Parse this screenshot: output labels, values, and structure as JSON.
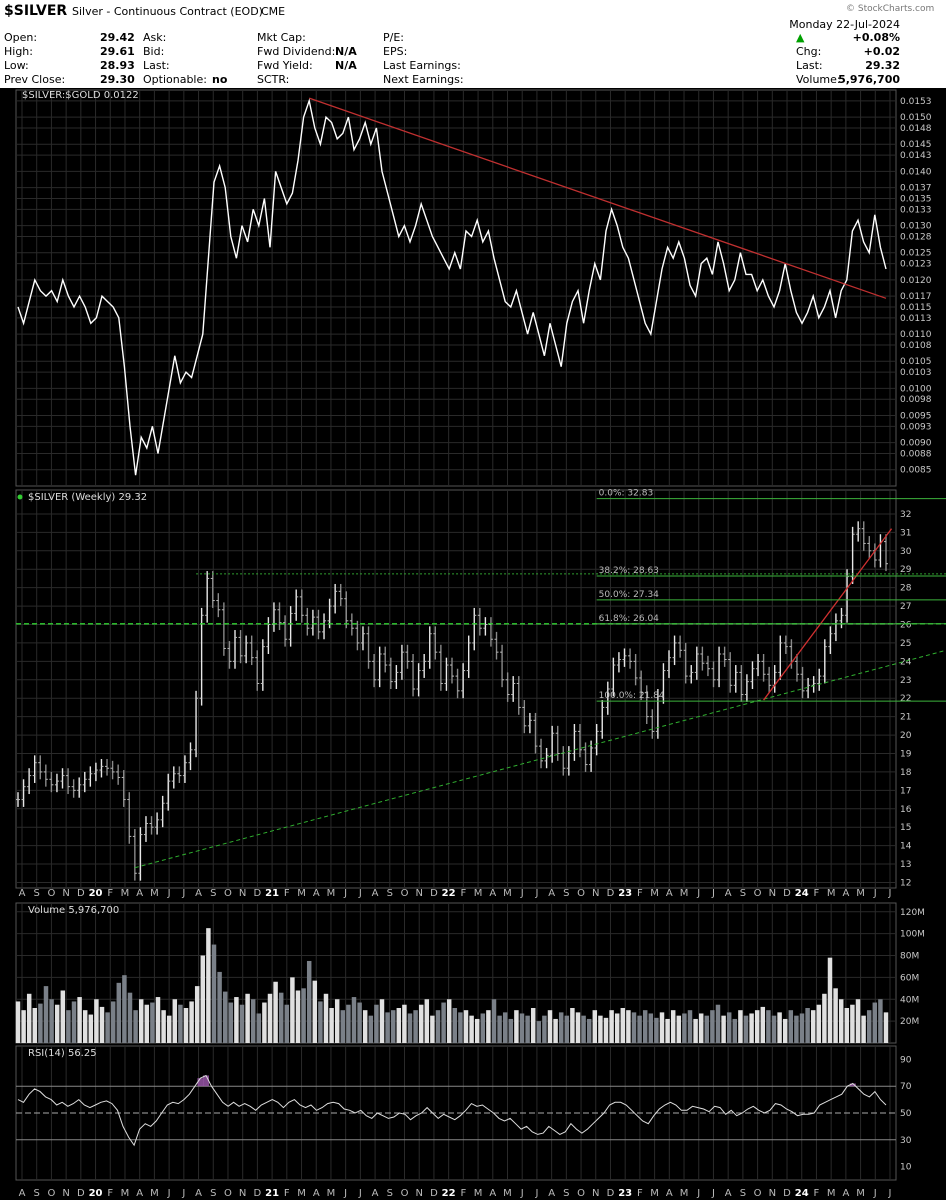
{
  "header": {
    "symbol": "$SILVER",
    "description": "Silver - Continuous Contract (EOD)",
    "exchange": "CME",
    "watermark": "© StockCharts.com",
    "date": "Monday  22-Jul-2024",
    "change_pct": "+0.08%",
    "change_arrow": "▲",
    "col1": [
      {
        "label": "Open:",
        "value": "29.42"
      },
      {
        "label": "High:",
        "value": "29.61"
      },
      {
        "label": "Low:",
        "value": "28.93"
      },
      {
        "label": "Prev Close:",
        "value": "29.30"
      }
    ],
    "col2": [
      {
        "label": "Ask:",
        "value": ""
      },
      {
        "label": "Bid:",
        "value": ""
      },
      {
        "label": "Last:",
        "value": ""
      },
      {
        "label": "Optionable:",
        "value": "no"
      }
    ],
    "col3": [
      {
        "label": "Mkt Cap:",
        "value": ""
      },
      {
        "label": "Fwd Dividend:",
        "value": "N/A"
      },
      {
        "label": "Fwd Yield:",
        "value": "N/A"
      },
      {
        "label": "SCTR:",
        "value": ""
      }
    ],
    "col4": [
      {
        "label": "P/E:",
        "value": ""
      },
      {
        "label": "EPS:",
        "value": ""
      },
      {
        "label": "Last Earnings:",
        "value": ""
      },
      {
        "label": "Next Earnings:",
        "value": ""
      }
    ],
    "chg_label": "Chg:",
    "chg_value": "+0.02",
    "last_label": "Last:",
    "last_value": "29.32",
    "volume_label": "Volume:",
    "volume_value": "5,976,700",
    "up_color": "#00a000"
  },
  "chart_data": [
    {
      "type": "line",
      "title": "$SILVER:$GOLD 0.0122",
      "x_start": "2019-08",
      "x_end": "2024-07",
      "ylim": [
        0.0082,
        0.0155
      ],
      "y_ticks": [
        "0.0153",
        "0.0150",
        "0.0148",
        "0.0145",
        "0.0143",
        "0.0140",
        "0.0137",
        "0.0135",
        "0.0133",
        "0.0130",
        "0.0128",
        "0.0125",
        "0.0123",
        "0.0120",
        "0.0117",
        "0.0115",
        "0.0113",
        "0.0110",
        "0.0108",
        "0.0105",
        "0.0103",
        "0.0100",
        "0.0098",
        "0.0095",
        "0.0093",
        "0.0090",
        "0.0088",
        "0.0085"
      ],
      "y_tick_values": [
        0.0153,
        0.015,
        0.0148,
        0.0145,
        0.0143,
        0.014,
        0.0137,
        0.0135,
        0.0133,
        0.013,
        0.0128,
        0.0125,
        0.0123,
        0.012,
        0.0117,
        0.0115,
        0.0113,
        0.011,
        0.0108,
        0.0105,
        0.0103,
        0.01,
        0.0098,
        0.0095,
        0.0093,
        0.009,
        0.0088,
        0.0085
      ],
      "series": [
        {
          "values": [
            0.0115,
            0.0112,
            0.0116,
            0.012,
            0.0118,
            0.0117,
            0.0118,
            0.0116,
            0.012,
            0.0117,
            0.0115,
            0.0117,
            0.0115,
            0.0112,
            0.0113,
            0.0117,
            0.0116,
            0.0115,
            0.0113,
            0.0104,
            0.0093,
            0.0084,
            0.0091,
            0.0089,
            0.0093,
            0.0088,
            0.0094,
            0.01,
            0.0106,
            0.0101,
            0.0103,
            0.0102,
            0.0106,
            0.011,
            0.0124,
            0.0138,
            0.0141,
            0.0137,
            0.0128,
            0.0124,
            0.013,
            0.0127,
            0.0133,
            0.013,
            0.0135,
            0.0126,
            0.014,
            0.0137,
            0.0134,
            0.0136,
            0.0142,
            0.015,
            0.0153,
            0.0148,
            0.0145,
            0.015,
            0.0149,
            0.0146,
            0.0147,
            0.015,
            0.0144,
            0.0146,
            0.0149,
            0.0145,
            0.0148,
            0.014,
            0.0136,
            0.0132,
            0.0128,
            0.013,
            0.0127,
            0.013,
            0.0134,
            0.0131,
            0.0128,
            0.0126,
            0.0124,
            0.0122,
            0.0125,
            0.0122,
            0.0129,
            0.0128,
            0.0131,
            0.0127,
            0.0129,
            0.0124,
            0.012,
            0.0116,
            0.0115,
            0.0118,
            0.0114,
            0.011,
            0.0114,
            0.011,
            0.0106,
            0.0112,
            0.0108,
            0.0104,
            0.0112,
            0.0116,
            0.0118,
            0.0112,
            0.0118,
            0.0123,
            0.012,
            0.0129,
            0.0133,
            0.013,
            0.0126,
            0.0124,
            0.012,
            0.0116,
            0.0112,
            0.011,
            0.0116,
            0.0122,
            0.0126,
            0.0124,
            0.0127,
            0.0124,
            0.0119,
            0.0117,
            0.0123,
            0.0124,
            0.0121,
            0.0127,
            0.0123,
            0.0118,
            0.012,
            0.0125,
            0.0121,
            0.0121,
            0.0118,
            0.012,
            0.0117,
            0.0115,
            0.0118,
            0.0123,
            0.0118,
            0.0114,
            0.0112,
            0.0114,
            0.0117,
            0.0113,
            0.0115,
            0.0118,
            0.0113,
            0.0118,
            0.012,
            0.0129,
            0.0131,
            0.0127,
            0.0125,
            0.0132,
            0.0126,
            0.0122
          ]
        }
      ]
    },
    {
      "type": "line",
      "title": "$SILVER (Weekly) 29.32",
      "x_start": "2019-08",
      "x_end": "2024-07",
      "ylim": [
        11.7,
        33.3
      ],
      "y_tick_values": [
        32,
        31,
        30,
        29,
        28,
        27,
        26,
        25,
        24,
        23,
        22,
        21,
        20,
        19,
        18,
        17,
        16,
        15,
        14,
        13,
        12
      ],
      "series": [
        {
          "values": [
            16.5,
            17.2,
            17.8,
            18.5,
            18.0,
            17.6,
            17.3,
            17.5,
            17.8,
            17.2,
            17.0,
            17.3,
            17.6,
            17.9,
            18.1,
            18.3,
            18.2,
            18.0,
            17.7,
            16.5,
            14.5,
            12.5,
            14.6,
            15.2,
            15.0,
            15.4,
            16.3,
            17.5,
            17.9,
            17.8,
            18.5,
            19.2,
            22.0,
            26.5,
            28.5,
            27.3,
            26.8,
            24.7,
            24.0,
            25.3,
            24.3,
            25.0,
            24.2,
            22.8,
            24.8,
            26.0,
            26.8,
            26.1,
            25.2,
            26.6,
            27.5,
            26.5,
            25.8,
            26.4,
            25.6,
            26.2,
            27.0,
            27.8,
            27.4,
            26.2,
            25.8,
            25.0,
            25.5,
            24.0,
            23.0,
            24.4,
            23.8,
            22.9,
            23.4,
            24.5,
            24.0,
            22.5,
            23.5,
            24.0,
            25.5,
            24.5,
            22.8,
            23.8,
            23.2,
            22.4,
            23.5,
            25.0,
            26.5,
            25.8,
            26.0,
            25.2,
            24.5,
            23.0,
            22.2,
            22.8,
            21.5,
            20.5,
            20.8,
            19.4,
            18.6,
            18.9,
            20.1,
            19.0,
            18.2,
            19.0,
            20.2,
            19.2,
            18.4,
            19.3,
            20.2,
            21.5,
            22.5,
            23.8,
            24.1,
            24.3,
            24.0,
            23.1,
            22.3,
            21.0,
            20.2,
            22.1,
            23.5,
            24.2,
            25.0,
            24.6,
            23.2,
            23.4,
            24.4,
            23.9,
            23.6,
            23.0,
            24.4,
            24.1,
            22.7,
            23.4,
            22.2,
            22.9,
            23.6,
            24.0,
            23.3,
            22.7,
            23.4,
            25.0,
            24.8,
            24.0,
            23.3,
            22.4,
            22.7,
            22.8,
            23.2,
            24.8,
            25.5,
            26.2,
            26.5,
            28.6,
            30.9,
            31.2,
            30.4,
            30.0,
            29.5,
            30.5,
            29.3
          ]
        }
      ],
      "fibonacci": [
        {
          "label": "0.0%: 32.83",
          "value": 32.83
        },
        {
          "label": "38.2%: 28.63",
          "value": 28.63
        },
        {
          "label": "50.0%: 27.34",
          "value": 27.34
        },
        {
          "label": "61.8%: 26.04",
          "value": 26.04
        },
        {
          "label": "100.0%: 21.84",
          "value": 21.84
        }
      ]
    },
    {
      "type": "bar",
      "title": "Volume 5,976,700",
      "y_ticks": [
        "120M",
        "100M",
        "80M",
        "60M",
        "40M",
        "20M"
      ],
      "y_tick_values": [
        120,
        100,
        80,
        60,
        40,
        20
      ],
      "ylim": [
        0,
        128
      ],
      "values": [
        38,
        30,
        45,
        32,
        36,
        52,
        40,
        35,
        48,
        30,
        38,
        42,
        30,
        26,
        40,
        33,
        28,
        38,
        55,
        62,
        46,
        30,
        40,
        35,
        37,
        42,
        30,
        25,
        40,
        35,
        32,
        38,
        52,
        80,
        105,
        90,
        65,
        47,
        37,
        42,
        35,
        45,
        40,
        27,
        37,
        45,
        56,
        46,
        35,
        60,
        48,
        50,
        75,
        57,
        38,
        45,
        32,
        40,
        30,
        35,
        42,
        37,
        30,
        25,
        35,
        40,
        28,
        30,
        32,
        35,
        27,
        30,
        35,
        40,
        25,
        30,
        37,
        40,
        32,
        28,
        30,
        25,
        22,
        27,
        30,
        40,
        25,
        28,
        22,
        30,
        27,
        25,
        32,
        20,
        25,
        30,
        22,
        28,
        25,
        32,
        28,
        25,
        22,
        30,
        25,
        23,
        30,
        27,
        32,
        30,
        28,
        25,
        30,
        27,
        23,
        28,
        22,
        30,
        25,
        27,
        30,
        22,
        27,
        25,
        30,
        35,
        25,
        28,
        22,
        30,
        25,
        27,
        30,
        33,
        30,
        25,
        28,
        22,
        30,
        25,
        27,
        32,
        30,
        35,
        45,
        78,
        50,
        40,
        32,
        35,
        40,
        25,
        30,
        37,
        40,
        28
      ]
    },
    {
      "type": "line",
      "title": "RSI(14) 56.25",
      "ylim": [
        0,
        100
      ],
      "y_ticks": [
        "90",
        "70",
        "50",
        "30",
        "10"
      ],
      "y_tick_values": [
        90,
        70,
        50,
        30,
        10
      ],
      "series": [
        {
          "values": [
            60,
            58,
            64,
            68,
            66,
            62,
            60,
            56,
            58,
            55,
            57,
            60,
            56,
            54,
            56,
            58,
            59,
            57,
            52,
            40,
            32,
            26,
            38,
            42,
            40,
            44,
            50,
            56,
            58,
            57,
            60,
            64,
            70,
            76,
            78,
            70,
            64,
            58,
            55,
            58,
            55,
            57,
            55,
            52,
            56,
            58,
            60,
            58,
            54,
            58,
            60,
            56,
            54,
            56,
            52,
            54,
            57,
            58,
            57,
            53,
            52,
            50,
            52,
            48,
            46,
            50,
            48,
            46,
            47,
            50,
            49,
            45,
            48,
            50,
            54,
            50,
            46,
            49,
            47,
            45,
            48,
            52,
            57,
            55,
            56,
            53,
            50,
            46,
            44,
            46,
            42,
            38,
            40,
            36,
            34,
            35,
            40,
            37,
            34,
            36,
            42,
            38,
            35,
            38,
            42,
            46,
            50,
            56,
            58,
            58,
            56,
            52,
            48,
            44,
            42,
            48,
            53,
            56,
            58,
            56,
            52,
            52,
            55,
            54,
            53,
            51,
            55,
            54,
            49,
            52,
            48,
            50,
            53,
            55,
            52,
            50,
            52,
            57,
            56,
            53,
            51,
            48,
            49,
            49,
            50,
            56,
            58,
            60,
            62,
            64,
            70,
            72,
            68,
            64,
            62,
            66,
            60,
            56
          ]
        }
      ],
      "ref_lines": [
        70,
        50,
        30
      ]
    }
  ],
  "x_axis": {
    "months": [
      "A",
      "S",
      "O",
      "N",
      "D",
      "20",
      "F",
      "M",
      "A",
      "M",
      "J",
      "J",
      "A",
      "S",
      "O",
      "N",
      "D",
      "21",
      "F",
      "M",
      "A",
      "M",
      "J",
      "J",
      "A",
      "S",
      "O",
      "N",
      "D",
      "22",
      "F",
      "M",
      "A",
      "M",
      "J",
      "J",
      "A",
      "S",
      "O",
      "N",
      "D",
      "23",
      "F",
      "M",
      "A",
      "M",
      "J",
      "J",
      "A",
      "S",
      "O",
      "N",
      "D",
      "24",
      "F",
      "M",
      "A",
      "M",
      "J",
      "J"
    ]
  }
}
